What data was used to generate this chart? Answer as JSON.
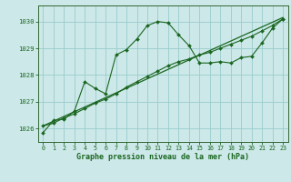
{
  "bg_color": "#cce8e8",
  "grid_color": "#99cccc",
  "line_color": "#1a6620",
  "spine_color": "#336633",
  "title": "Graphe pression niveau de la mer (hPa)",
  "xlim": [
    -0.5,
    23.5
  ],
  "ylim": [
    1025.5,
    1030.6
  ],
  "yticks": [
    1026,
    1027,
    1028,
    1029,
    1030
  ],
  "xticks": [
    0,
    1,
    2,
    3,
    4,
    5,
    6,
    7,
    8,
    9,
    10,
    11,
    12,
    13,
    14,
    15,
    16,
    17,
    18,
    19,
    20,
    21,
    22,
    23
  ],
  "line1_x": [
    0,
    1,
    2,
    3,
    4,
    5,
    6,
    7,
    8,
    9,
    10,
    11,
    12,
    13,
    14,
    15,
    16,
    17,
    18,
    19,
    20,
    21,
    22,
    23
  ],
  "line1_y": [
    1025.85,
    1026.3,
    1026.35,
    1026.65,
    1027.75,
    1027.5,
    1027.3,
    1028.75,
    1028.95,
    1029.35,
    1029.85,
    1030.0,
    1029.95,
    1029.5,
    1029.1,
    1028.45,
    1028.45,
    1028.5,
    1028.45,
    1028.65,
    1028.7,
    1029.2,
    1029.75,
    1030.1
  ],
  "line2_x": [
    0,
    23
  ],
  "line2_y": [
    1026.1,
    1030.15
  ],
  "line3_x": [
    0,
    1,
    2,
    3,
    4,
    5,
    6,
    7,
    8,
    9,
    10,
    11,
    12,
    13,
    14,
    15,
    16,
    17,
    18,
    19,
    20,
    21,
    22,
    23
  ],
  "line3_y": [
    1026.1,
    1026.2,
    1026.4,
    1026.55,
    1026.75,
    1026.95,
    1027.1,
    1027.3,
    1027.55,
    1027.75,
    1027.95,
    1028.15,
    1028.35,
    1028.5,
    1028.6,
    1028.75,
    1028.85,
    1029.0,
    1029.15,
    1029.3,
    1029.45,
    1029.65,
    1029.85,
    1030.1
  ]
}
